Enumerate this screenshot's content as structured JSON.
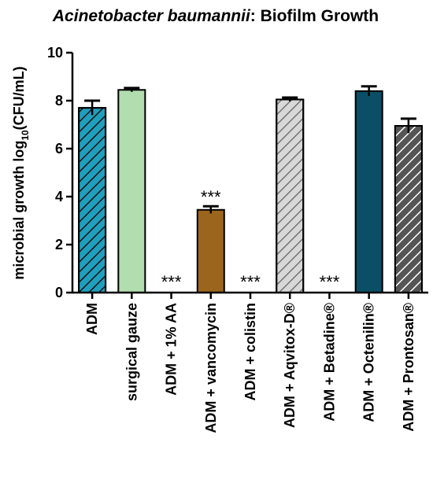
{
  "chart_data": {
    "type": "bar",
    "title_italic": "Acinetobacter baumannii",
    "title_rest": ": Biofilm Growth",
    "ylabel_main": "microbial growth log",
    "ylabel_sub": "10",
    "ylabel_tail": "(CFU/mL)",
    "ylim": [
      0,
      10
    ],
    "yticks": [
      0,
      2,
      4,
      6,
      8,
      10
    ],
    "ytick_labels": [
      "0",
      "2",
      "4",
      "6",
      "8",
      "10"
    ],
    "categories": [
      "ADM",
      "surgical gauze",
      "ADM + 1% AA",
      "ADM + vancomycin",
      "ADM + colistin",
      "ADM + Aqvitox-D®",
      "ADM + Betadine®",
      "ADM + Octenilin®",
      "ADM + Prontosan®"
    ],
    "values": [
      7.7,
      8.45,
      0,
      3.45,
      0,
      8.05,
      0,
      8.4,
      6.95
    ],
    "errors": [
      0.3,
      0.08,
      0,
      0.15,
      0,
      0.08,
      0,
      0.2,
      0.3
    ],
    "significance": [
      "",
      "",
      "***",
      "***",
      "***",
      "",
      "***",
      "",
      ""
    ],
    "colors": [
      "#1f9fbe",
      "#b2ddaf",
      "#ffffff",
      "#9b651e",
      "#ffffff",
      "#d8d8d8",
      "#ffffff",
      "#0b4f66",
      "#555555"
    ],
    "hatched": [
      true,
      false,
      false,
      false,
      false,
      true,
      false,
      false,
      true
    ],
    "grid": false,
    "legend": "none"
  }
}
